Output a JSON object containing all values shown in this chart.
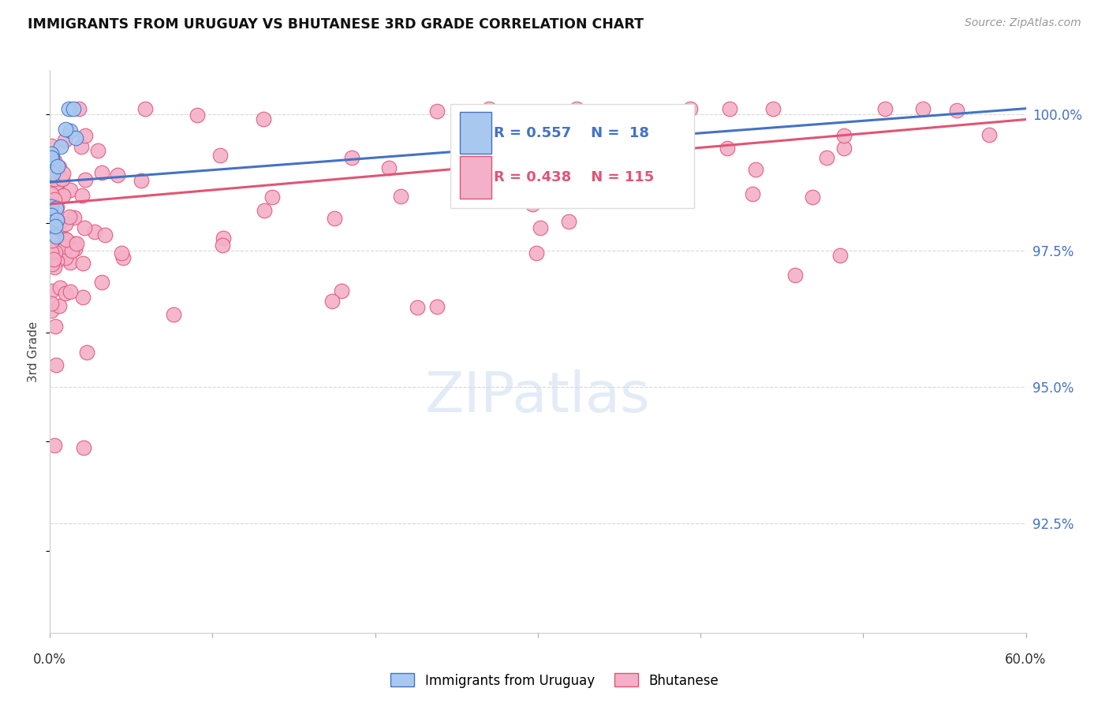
{
  "title": "IMMIGRANTS FROM URUGUAY VS BHUTANESE 3RD GRADE CORRELATION CHART",
  "source": "Source: ZipAtlas.com",
  "ylabel": "3rd Grade",
  "ytick_labels": [
    "100.0%",
    "97.5%",
    "95.0%",
    "92.5%"
  ],
  "ytick_values": [
    1.0,
    0.975,
    0.95,
    0.925
  ],
  "xlim": [
    0.0,
    0.6
  ],
  "ylim": [
    0.905,
    1.008
  ],
  "legend_label_uruguay": "Immigrants from Uruguay",
  "legend_label_bhutanese": "Bhutanese",
  "color_uruguay": "#a8c8f0",
  "color_bhutanese": "#f4b0c8",
  "line_color_uruguay": "#4472c4",
  "line_color_bhutanese": "#e05575",
  "R_uruguay": 0.557,
  "N_uruguay": 18,
  "R_bhutanese": 0.438,
  "N_bhutanese": 115,
  "background_color": "#ffffff"
}
